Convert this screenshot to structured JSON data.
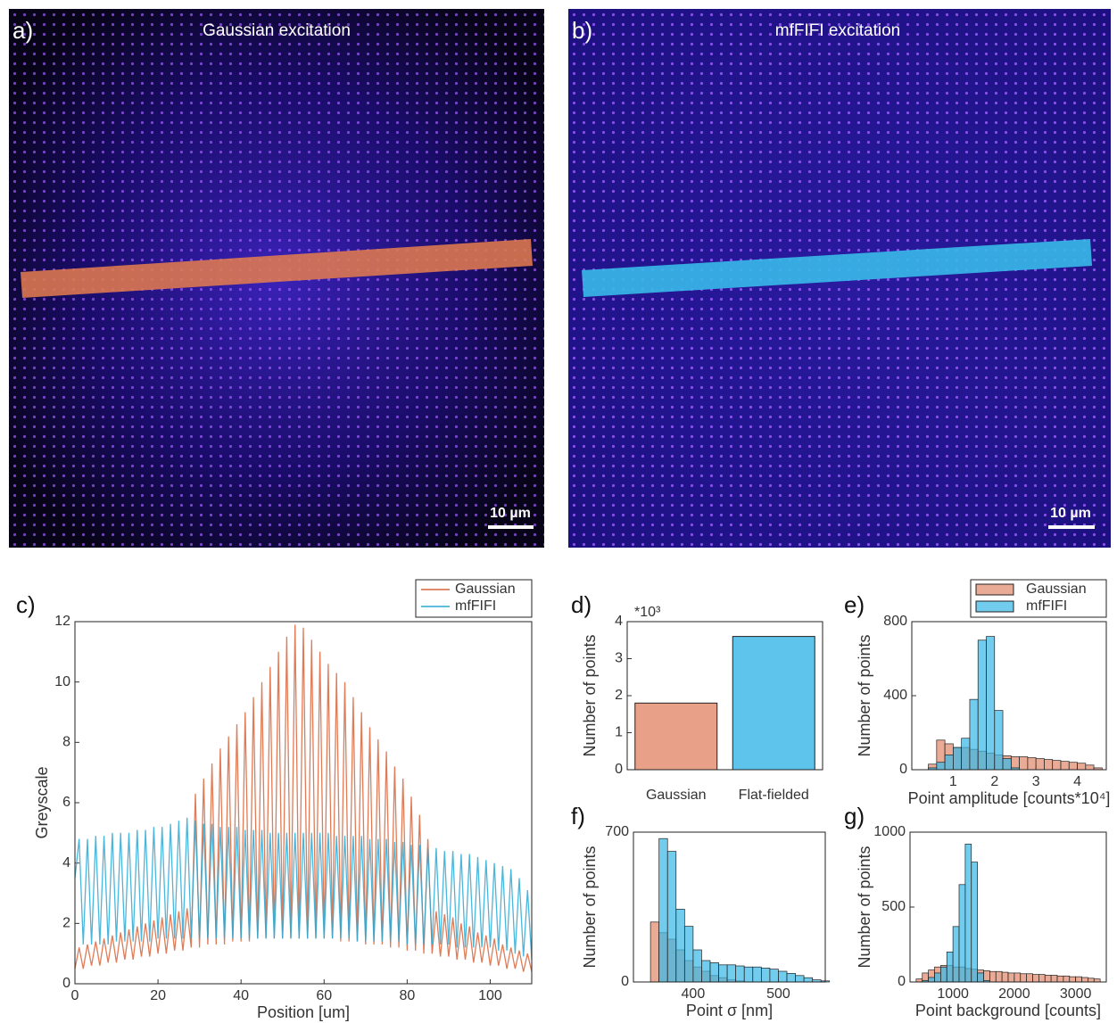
{
  "images": [
    {
      "label": "a)",
      "title": "Gaussian excitation",
      "scale_bar": "10 µm"
    },
    {
      "label": "b)",
      "title": "mfFIFI excitation",
      "scale_bar": "10 µm"
    }
  ],
  "chart_data": [
    {
      "type": "line",
      "panel": "c)",
      "xlabel": "Position [um]",
      "ylabel": "Greyscale",
      "xlim": [
        0,
        110
      ],
      "ylim": [
        0,
        12
      ],
      "xticks": [
        0,
        20,
        40,
        60,
        80,
        100
      ],
      "yticks": [
        0,
        2,
        4,
        6,
        8,
        10,
        12
      ],
      "legend": "top-right",
      "x": [
        0,
        1,
        2,
        3,
        4,
        5,
        6,
        7,
        8,
        9,
        10,
        11,
        12,
        13,
        14,
        15,
        16,
        17,
        18,
        19,
        20,
        21,
        22,
        23,
        24,
        25,
        26,
        27,
        28,
        29,
        30,
        31,
        32,
        33,
        34,
        35,
        36,
        37,
        38,
        39,
        40,
        41,
        42,
        43,
        44,
        45,
        46,
        47,
        48,
        49,
        50,
        51,
        52,
        53,
        54,
        55,
        56,
        57,
        58,
        59,
        60,
        61,
        62,
        63,
        64,
        65,
        66,
        67,
        68,
        69,
        70,
        71,
        72,
        73,
        74,
        75,
        76,
        77,
        78,
        79,
        80,
        81,
        82,
        83,
        84,
        85,
        86,
        87,
        88,
        89,
        90,
        91,
        92,
        93,
        94,
        95,
        96,
        97,
        98,
        99,
        100,
        101,
        102,
        103,
        104,
        105,
        106,
        107,
        108,
        109,
        110
      ],
      "series": [
        {
          "name": "Gaussian",
          "color": "#d9653b",
          "values": [
            0.5,
            1.2,
            0.5,
            1.3,
            0.6,
            1.4,
            0.6,
            1.5,
            0.7,
            1.6,
            0.7,
            1.7,
            0.8,
            1.8,
            0.8,
            1.9,
            0.9,
            2.0,
            0.9,
            2.1,
            1.0,
            2.2,
            1.0,
            2.3,
            1.1,
            2.4,
            1.1,
            2.5,
            1.2,
            6.3,
            1.2,
            6.8,
            1.3,
            7.3,
            1.3,
            7.8,
            1.3,
            8.2,
            1.4,
            8.6,
            1.4,
            9.0,
            1.4,
            9.5,
            1.5,
            10.0,
            1.5,
            10.5,
            1.5,
            11.0,
            1.5,
            11.5,
            1.5,
            11.9,
            1.5,
            11.8,
            1.5,
            11.4,
            1.5,
            11.0,
            1.5,
            10.6,
            1.5,
            10.3,
            1.4,
            10.0,
            1.4,
            9.5,
            1.4,
            9.0,
            1.3,
            8.5,
            1.3,
            8.1,
            1.3,
            7.7,
            1.2,
            7.2,
            1.2,
            6.8,
            1.1,
            6.2,
            1.1,
            5.6,
            1.0,
            4.8,
            1.0,
            2.4,
            0.9,
            2.3,
            0.9,
            2.2,
            0.8,
            2.0,
            0.8,
            1.9,
            0.7,
            1.7,
            0.7,
            1.6,
            0.6,
            1.5,
            0.6,
            1.3,
            0.5,
            1.2,
            0.5,
            1.1,
            0.4,
            1.0,
            0.4
          ]
        },
        {
          "name": "mfFIFI",
          "color": "#2aa9d6",
          "values": [
            3.5,
            4.8,
            1.3,
            4.8,
            1.3,
            4.9,
            1.3,
            4.9,
            1.3,
            5.0,
            1.4,
            5.0,
            1.4,
            5.0,
            1.4,
            5.1,
            1.4,
            5.1,
            1.4,
            5.2,
            1.5,
            5.2,
            1.5,
            5.3,
            1.5,
            5.4,
            1.5,
            5.5,
            1.5,
            5.4,
            1.5,
            5.3,
            1.5,
            5.3,
            1.5,
            5.2,
            1.5,
            5.2,
            1.5,
            5.2,
            1.5,
            5.1,
            1.5,
            5.1,
            1.5,
            5.1,
            1.5,
            5.0,
            1.5,
            5.0,
            1.5,
            5.0,
            1.5,
            5.0,
            1.5,
            5.0,
            1.5,
            5.0,
            1.5,
            5.0,
            1.5,
            5.0,
            1.5,
            4.9,
            1.5,
            4.9,
            1.5,
            4.9,
            1.4,
            4.9,
            1.4,
            4.8,
            1.4,
            4.8,
            1.4,
            4.8,
            1.4,
            4.7,
            1.4,
            4.7,
            1.3,
            4.6,
            1.3,
            4.6,
            1.3,
            4.5,
            1.3,
            4.5,
            1.3,
            4.4,
            1.3,
            4.4,
            1.2,
            4.3,
            1.2,
            4.3,
            1.2,
            4.2,
            1.2,
            4.1,
            1.2,
            4.0,
            1.1,
            3.9,
            1.1,
            3.8,
            1.0,
            3.5,
            0.9,
            3.1,
            0.8
          ]
        }
      ]
    },
    {
      "type": "bar",
      "panel": "d)",
      "ylabel": "Number of points",
      "y_multiplier": "*10³",
      "categories": [
        "Gaussian",
        "Flat-fielded"
      ],
      "values": [
        1.8,
        3.6
      ],
      "colors": [
        "#e8a088",
        "#5ec4ec"
      ],
      "ylim": [
        0,
        4
      ],
      "yticks": [
        0,
        1,
        2,
        3,
        4
      ]
    },
    {
      "type": "histogram",
      "panel": "e)",
      "xlabel": "Point amplitude [counts*10⁴]",
      "ylabel": "Number of points",
      "xlim": [
        0,
        4.7
      ],
      "ylim": [
        0,
        800
      ],
      "xticks": [
        1,
        2,
        3,
        4
      ],
      "yticks": [
        0,
        400,
        800
      ],
      "legend": "top-right",
      "bins": [
        0.2,
        0.4,
        0.6,
        0.8,
        1.0,
        1.2,
        1.4,
        1.6,
        1.8,
        2.0,
        2.2,
        2.4,
        2.6,
        2.8,
        3.0,
        3.2,
        3.4,
        3.6,
        3.8,
        4.0,
        4.2,
        4.4,
        4.6
      ],
      "series": [
        {
          "name": "Gaussian",
          "color": "#e08a6c",
          "values": [
            0,
            30,
            160,
            140,
            120,
            120,
            110,
            100,
            90,
            80,
            75,
            70,
            70,
            65,
            60,
            55,
            50,
            45,
            40,
            35,
            25,
            10
          ]
        },
        {
          "name": "mfFIFI",
          "color": "#3ab8e8",
          "values": [
            0,
            10,
            40,
            80,
            120,
            170,
            380,
            700,
            720,
            320,
            60,
            10,
            0,
            0,
            0,
            0,
            0,
            0,
            0,
            0,
            0,
            0
          ]
        }
      ]
    },
    {
      "type": "histogram",
      "panel": "f)",
      "xlabel": "Point σ [nm]",
      "ylabel": "Number of points",
      "xlim": [
        330,
        555
      ],
      "ylim": [
        0,
        700
      ],
      "xticks": [
        400,
        500
      ],
      "yticks": [
        0,
        700
      ],
      "bins": [
        340,
        350,
        360,
        370,
        380,
        390,
        400,
        410,
        420,
        430,
        440,
        450,
        460,
        470,
        480,
        490,
        500,
        510,
        520,
        530,
        540,
        550,
        560
      ],
      "series": [
        {
          "color": "#e08a6c",
          "values": [
            0,
            280,
            230,
            200,
            150,
            100,
            70,
            50,
            30,
            20,
            10,
            5,
            0,
            0,
            0,
            0,
            0,
            0,
            0,
            0,
            0,
            0
          ]
        },
        {
          "color": "#3ab8e8",
          "values": [
            0,
            0,
            670,
            610,
            340,
            260,
            150,
            100,
            90,
            80,
            80,
            75,
            70,
            70,
            65,
            60,
            50,
            40,
            30,
            20,
            10,
            5
          ]
        }
      ]
    },
    {
      "type": "histogram",
      "panel": "g)",
      "xlabel": "Point background [counts]",
      "ylabel": "Number of points",
      "xlim": [
        300,
        3500
      ],
      "ylim": [
        0,
        1000
      ],
      "xticks": [
        1000,
        2000,
        3000
      ],
      "yticks": [
        0,
        500,
        1000
      ],
      "bins": [
        400,
        500,
        600,
        700,
        800,
        900,
        1000,
        1100,
        1200,
        1300,
        1400,
        1500,
        1600,
        1700,
        1800,
        1900,
        2000,
        2100,
        2200,
        2300,
        2400,
        2500,
        2600,
        2700,
        2800,
        2900,
        3000,
        3100,
        3200,
        3300,
        3400
      ],
      "series": [
        {
          "color": "#e08a6c",
          "values": [
            20,
            60,
            80,
            100,
            110,
            110,
            100,
            100,
            90,
            85,
            80,
            75,
            70,
            70,
            65,
            60,
            60,
            55,
            55,
            50,
            50,
            45,
            45,
            40,
            40,
            35,
            35,
            30,
            25,
            20
          ]
        },
        {
          "color": "#3ab8e8",
          "values": [
            0,
            10,
            30,
            60,
            100,
            200,
            370,
            650,
            920,
            800,
            60,
            10,
            0,
            0,
            0,
            0,
            0,
            0,
            0,
            0,
            0,
            0,
            0,
            0,
            0,
            0,
            0,
            0,
            0,
            0
          ]
        }
      ]
    }
  ]
}
